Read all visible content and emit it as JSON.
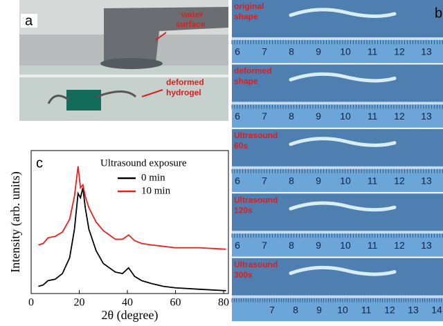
{
  "panel_a": {
    "label": "a",
    "annotation_water": [
      "water",
      "surface"
    ],
    "annotation_hydrogel": [
      "deformed",
      "hydrogel"
    ]
  },
  "panel_b": {
    "label": "b",
    "rows": [
      {
        "caption": [
          "original",
          "shape"
        ],
        "ruler": [
          "6",
          "7",
          "8",
          "9",
          "10",
          "11",
          "12",
          "13"
        ]
      },
      {
        "caption": [
          "deformed",
          "shape"
        ],
        "ruler": [
          "6",
          "7",
          "8",
          "9",
          "10",
          "11",
          "12",
          "13"
        ]
      },
      {
        "caption": [
          "Ultrasound",
          "60s"
        ],
        "ruler": [
          "6",
          "7",
          "8",
          "9",
          "10",
          "11",
          "12",
          "13"
        ]
      },
      {
        "caption": [
          "Ultrasound",
          "120s"
        ],
        "ruler": [
          "6",
          "7",
          "8",
          "9",
          "10",
          "11",
          "12",
          "13"
        ]
      },
      {
        "caption": [
          "Ultrasound",
          "300s"
        ],
        "ruler": [
          "7",
          "8",
          "9",
          "10",
          "11",
          "12",
          "13",
          "14"
        ]
      }
    ]
  },
  "panel_c": {
    "label": "c"
  },
  "chart_data": {
    "type": "line",
    "xlabel": "2θ (degree)",
    "ylabel": "Intensity (arb. units)",
    "legend_title": "Ultrasound exposure",
    "x": [
      3,
      5,
      7,
      10,
      13,
      16,
      18,
      19.5,
      20.5,
      21.5,
      22.5,
      24,
      27,
      30,
      35,
      38,
      40.5,
      43,
      46,
      50,
      55,
      60,
      70,
      81
    ],
    "series": [
      {
        "name": "0 min",
        "color": "#000000",
        "values": [
          5,
          6,
          9,
          10,
          14,
          25,
          45,
          70,
          67,
          74,
          60,
          45,
          30,
          21,
          15,
          14,
          18,
          12,
          9,
          7,
          5,
          4,
          3,
          2
        ]
      },
      {
        "name": "10 min",
        "color": "#ee1c1c",
        "values": [
          34,
          35,
          39,
          40,
          43,
          52,
          68,
          89,
          74,
          76,
          68,
          60,
          50,
          44,
          38,
          38,
          41,
          37,
          35,
          34,
          33,
          32,
          32,
          31
        ]
      }
    ],
    "xlim": [
      0,
      82
    ],
    "xticks": [
      0,
      20,
      40,
      60,
      80
    ],
    "ylim": [
      0,
      100
    ]
  }
}
